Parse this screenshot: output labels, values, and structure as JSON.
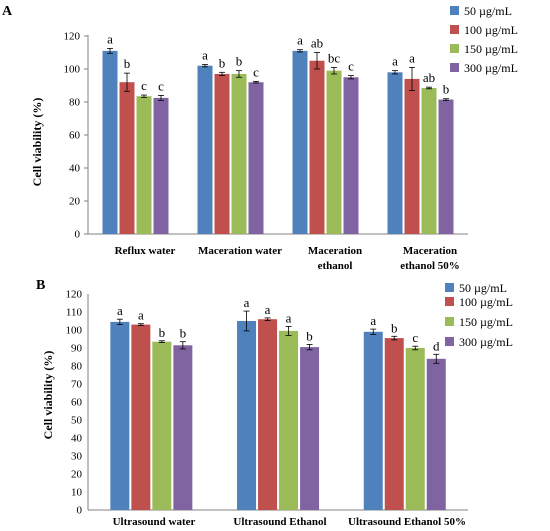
{
  "figure": {
    "panels": [
      {
        "letter": "A",
        "ylabel": "Cell viability (%)",
        "yticks": [
          "0",
          "20",
          "40",
          "60",
          "80",
          "100",
          "120"
        ],
        "legend": [
          "50 µg/mL",
          "100 µg/mL",
          "150 µg/mL",
          "300 µg/mL"
        ],
        "categories": [
          [
            "Reflux water"
          ],
          [
            "Maceration water"
          ],
          [
            "Maceration",
            "ethanol"
          ],
          [
            "Maceration",
            "ethanol 50%"
          ]
        ]
      },
      {
        "letter": "B",
        "ylabel": "Cell viability (%)",
        "yticks": [
          "0",
          "10",
          "20",
          "30",
          "40",
          "50",
          "60",
          "70",
          "80",
          "90",
          "100",
          "110",
          "120"
        ],
        "legend": [
          "50 µg/mL",
          "100 µg/mL",
          "150 µg/mL",
          "300 µg/mL"
        ],
        "categories": [
          [
            "Ultrasound water"
          ],
          [
            "Ultrasound Ethanol"
          ],
          [
            "Ultrasound Ethanol 50%"
          ]
        ]
      }
    ]
  },
  "chart_data": [
    {
      "type": "bar",
      "panel": "A",
      "ylabel": "Cell viability (%)",
      "ylim": [
        0,
        120
      ],
      "categories": [
        "Reflux water",
        "Maceration water",
        "Maceration ethanol",
        "Maceration ethanol 50%"
      ],
      "series": [
        {
          "name": "50 µg/mL",
          "color": "#4f81bd",
          "values": [
            111,
            102,
            111,
            98
          ],
          "errors": [
            1.5,
            0.7,
            0.7,
            1.0
          ],
          "labels": [
            "a",
            "a",
            "a",
            "a"
          ]
        },
        {
          "name": "100 µg/mL",
          "color": "#c0504d",
          "values": [
            92,
            97,
            105,
            94
          ],
          "errors": [
            5.5,
            1.0,
            5.0,
            7.0
          ],
          "labels": [
            "b",
            "b",
            "ab",
            "a"
          ]
        },
        {
          "name": "150 µg/mL",
          "color": "#9bbb59",
          "values": [
            83.5,
            97,
            99,
            88.5
          ],
          "errors": [
            0.7,
            2.0,
            2.0,
            0.5
          ],
          "labels": [
            "c",
            "b",
            "bc",
            "ab"
          ]
        },
        {
          "name": "300 µg/mL",
          "color": "#8064a2",
          "values": [
            82.5,
            92,
            95,
            81.5
          ],
          "errors": [
            1.5,
            0.5,
            1.0,
            0.5
          ],
          "labels": [
            "c",
            "c",
            "c",
            "b"
          ]
        }
      ],
      "legend_position": "right",
      "grid": false
    },
    {
      "type": "bar",
      "panel": "B",
      "ylabel": "Cell viability (%)",
      "ylim": [
        0,
        120
      ],
      "categories": [
        "Ultrasound water",
        "Ultrasound Ethanol",
        "Ultrasound Ethanol 50%"
      ],
      "series": [
        {
          "name": "50 µg/mL",
          "color": "#4f81bd",
          "values": [
            104.5,
            105,
            99
          ],
          "errors": [
            1.5,
            5.5,
            1.5
          ],
          "labels": [
            "a",
            "a",
            "a"
          ]
        },
        {
          "name": "100 µg/mL",
          "color": "#c0504d",
          "values": [
            103,
            106,
            95.5
          ],
          "errors": [
            0.5,
            0.7,
            1.0
          ],
          "labels": [
            "a",
            "a",
            "b"
          ]
        },
        {
          "name": "150 µg/mL",
          "color": "#9bbb59",
          "values": [
            93.5,
            99.5,
            90
          ],
          "errors": [
            0.5,
            2.5,
            1.0
          ],
          "labels": [
            "b",
            "a",
            "c"
          ]
        },
        {
          "name": "300 µg/mL",
          "color": "#8064a2",
          "values": [
            91.5,
            90.5,
            84
          ],
          "errors": [
            2.0,
            1.5,
            2.5
          ],
          "labels": [
            "b",
            "b",
            "d"
          ]
        }
      ],
      "legend_position": "right",
      "grid": false
    }
  ]
}
